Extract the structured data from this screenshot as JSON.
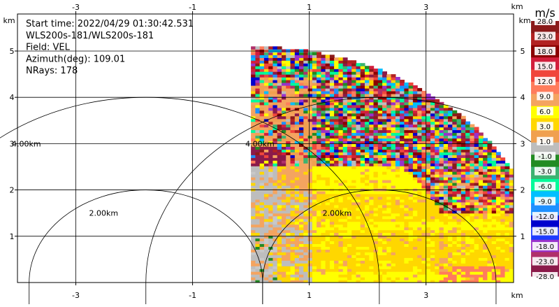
{
  "chart_data": {
    "type": "heatmap",
    "title_lines": [
      "Start time: 2022/04/29 01:30:42.531",
      "WLS200s-181/WLS200s-181",
      "Field: VEL",
      "Azimuth(deg): 109.01",
      "NRays: 178"
    ],
    "x_unit": "km",
    "y_unit": "km",
    "xlim": [
      -4,
      4.5
    ],
    "ylim": [
      0,
      5.8
    ],
    "x_ticks": [
      -3,
      -1,
      1,
      3
    ],
    "y_ticks": [
      1,
      2,
      3,
      4,
      5
    ],
    "grid": true,
    "range_rings": [
      {
        "center_x": -1.8,
        "radius": 2,
        "label": "2.00km"
      },
      {
        "center_x": -1.8,
        "radius": 4,
        "label": "4.00km"
      },
      {
        "center_x": 2.2,
        "radius": 2,
        "label": "2.00km"
      },
      {
        "center_x": 2.2,
        "radius": 4,
        "label": "4.00km"
      }
    ],
    "sector": {
      "center_x": 0,
      "center_y": 0,
      "max_range_km": 5.1
    },
    "colorbar": {
      "unit": "m/s",
      "ticks": [
        "28.0",
        "23.0",
        "18.0",
        "15.0",
        "12.0",
        "9.0",
        "6.0",
        "3.0",
        "1.0",
        "-1.0",
        "-3.0",
        "-6.0",
        "-9.0",
        "-12.0",
        "-15.0",
        "-18.0",
        "-23.0",
        "-28.0"
      ],
      "colors": [
        "#8b1a1a",
        "#b22222",
        "#8b0000",
        "#d21e3c",
        "#f0463c",
        "#ff7c5c",
        "#f4a460",
        "#ffff00",
        "#ffd700",
        "#f0a050",
        "#bdbdbd",
        "#228b22",
        "#3cb371",
        "#00fa9a",
        "#00bfff",
        "#1e90ff",
        "#0000cd",
        "#1e3cff",
        "#9932cc",
        "#b0306a",
        "#8b1a4a"
      ]
    }
  }
}
